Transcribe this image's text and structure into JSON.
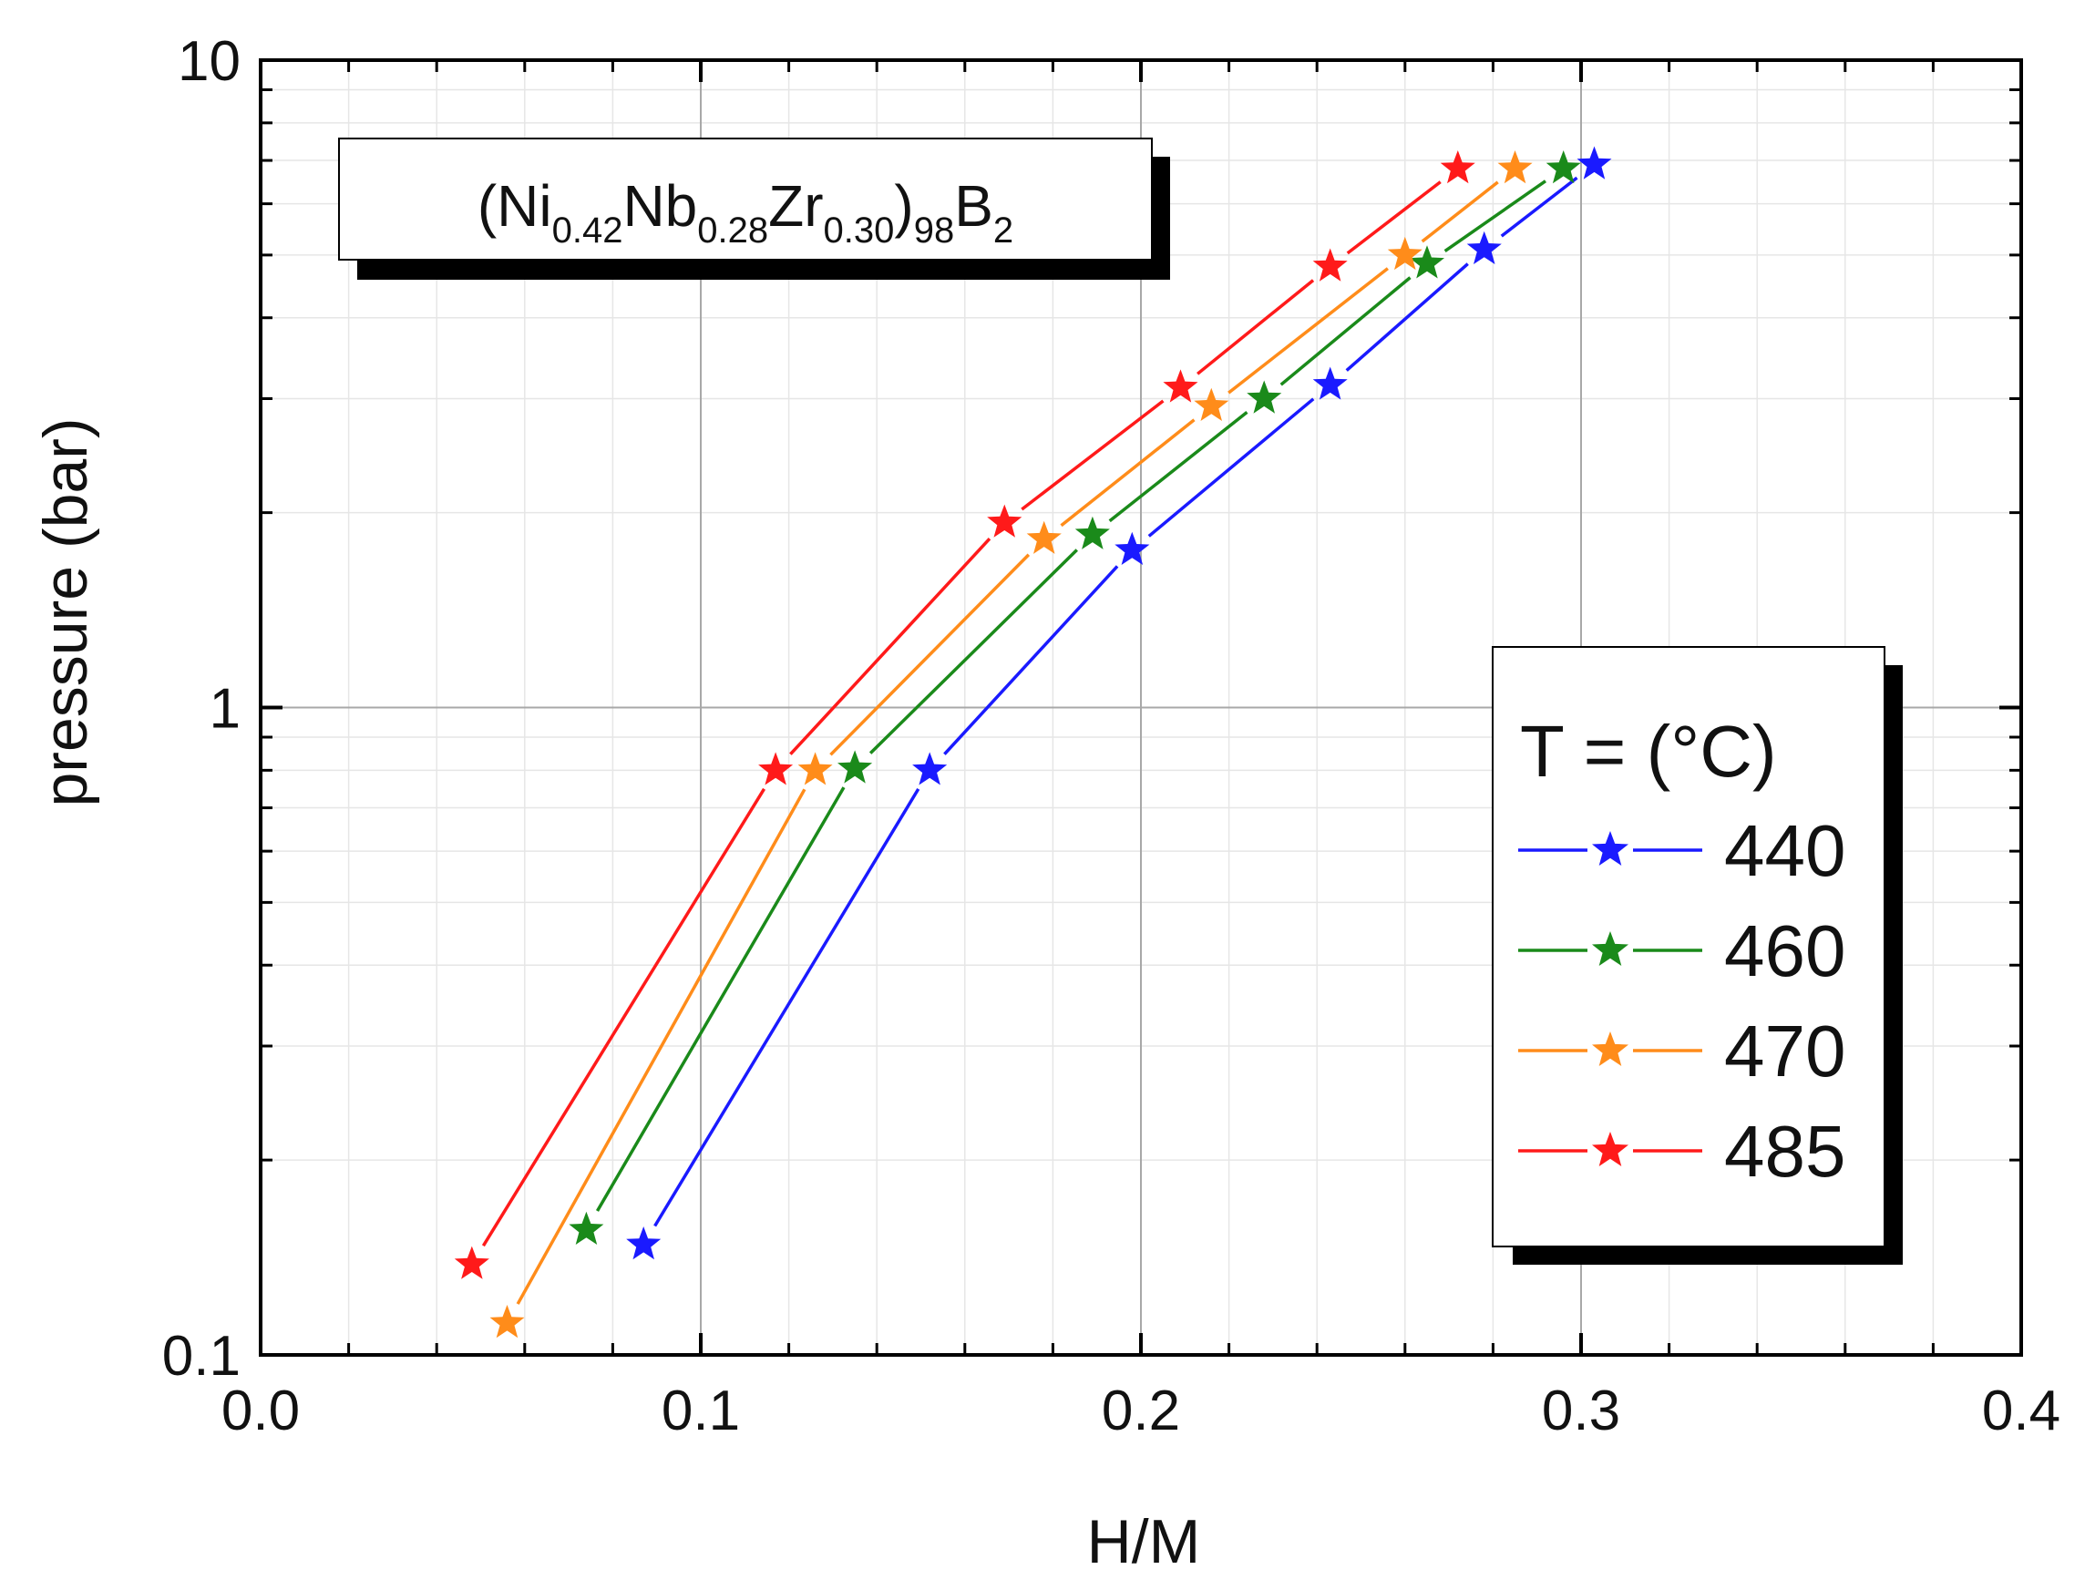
{
  "chart_data": {
    "type": "line",
    "title": "",
    "xlabel": "H/M",
    "ylabel": "pressure (bar)",
    "xlim": [
      0.0,
      0.4
    ],
    "ylim": [
      0.1,
      10
    ],
    "yscale": "log",
    "grid": true,
    "x_ticks": [
      {
        "value": 0.0,
        "label": "0.0"
      },
      {
        "value": 0.1,
        "label": "0.1"
      },
      {
        "value": 0.2,
        "label": "0.2"
      },
      {
        "value": 0.3,
        "label": "0.3"
      },
      {
        "value": 0.4,
        "label": "0.4"
      }
    ],
    "y_ticks": [
      {
        "value": 0.1,
        "label": "0.1"
      },
      {
        "value": 1,
        "label": "1"
      },
      {
        "value": 10,
        "label": "10"
      }
    ],
    "annotation": {
      "parts": [
        {
          "text": "(Ni",
          "sub": false
        },
        {
          "text": "0.42",
          "sub": true
        },
        {
          "text": "Nb",
          "sub": false
        },
        {
          "text": "0.28",
          "sub": true
        },
        {
          "text": "Zr",
          "sub": false
        },
        {
          "text": "0.30",
          "sub": true
        },
        {
          "text": ")",
          "sub": false
        },
        {
          "text": "98",
          "sub": true
        },
        {
          "text": "B",
          "sub": false
        },
        {
          "text": "2",
          "sub": true
        }
      ]
    },
    "legend": {
      "title": "T = (°C)",
      "placement": "right"
    },
    "series": [
      {
        "name": "440",
        "color": "#1a1aff",
        "x": [
          0.087,
          0.152,
          0.198,
          0.243,
          0.278,
          0.303
        ],
        "y": [
          0.148,
          0.8,
          1.75,
          3.15,
          5.1,
          6.9
        ]
      },
      {
        "name": "460",
        "color": "#1a8a1a",
        "x": [
          0.074,
          0.135,
          0.189,
          0.228,
          0.265,
          0.296
        ],
        "y": [
          0.156,
          0.805,
          1.85,
          3.0,
          4.85,
          6.8
        ]
      },
      {
        "name": "470",
        "color": "#ff8c1a",
        "x": [
          0.056,
          0.126,
          0.178,
          0.216,
          0.26,
          0.285
        ],
        "y": [
          0.112,
          0.8,
          1.82,
          2.92,
          5.0,
          6.8
        ]
      },
      {
        "name": "485",
        "color": "#ff1a1a",
        "x": [
          0.048,
          0.117,
          0.169,
          0.209,
          0.243,
          0.272
        ],
        "y": [
          0.138,
          0.8,
          1.93,
          3.12,
          4.8,
          6.8
        ]
      }
    ]
  }
}
